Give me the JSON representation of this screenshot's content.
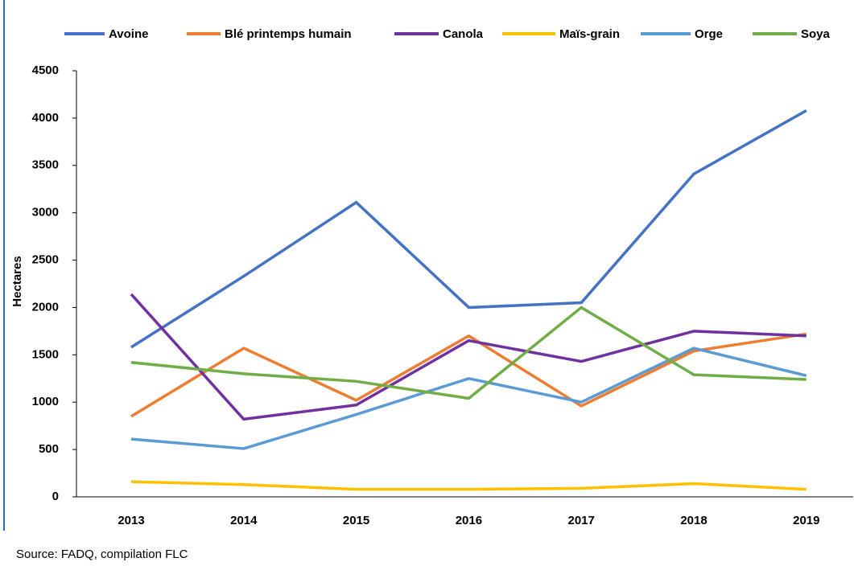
{
  "chart_data": {
    "type": "line",
    "y_label": "Hectares",
    "source": "Source:  FADQ, compilation  FLC",
    "categories": [
      "2013",
      "2014",
      "2015",
      "2016",
      "2017",
      "2018",
      "2019"
    ],
    "series": [
      {
        "name": "Avoine",
        "color": "#4472c4",
        "values": [
          1580,
          2330,
          3110,
          2000,
          2050,
          3410,
          4080
        ]
      },
      {
        "name": "Blé printemps humain",
        "color": "#ed7d31",
        "values": [
          850,
          1570,
          1020,
          1700,
          960,
          1540,
          1720
        ]
      },
      {
        "name": "Canola",
        "color": "#7030a0",
        "values": [
          2140,
          820,
          970,
          1650,
          1430,
          1750,
          1700
        ]
      },
      {
        "name": "Maïs-grain",
        "color": "#ffc000",
        "values": [
          160,
          130,
          80,
          80,
          90,
          140,
          80
        ]
      },
      {
        "name": "Orge",
        "color": "#5b9bd5",
        "values": [
          610,
          510,
          870,
          1250,
          1000,
          1570,
          1280
        ]
      },
      {
        "name": "Soya",
        "color": "#70ad47",
        "values": [
          1420,
          1300,
          1220,
          1040,
          2000,
          1290,
          1240
        ]
      }
    ],
    "ylim": [
      0,
      4500
    ],
    "yticks": [
      0,
      500,
      1000,
      1500,
      2000,
      2500,
      3000,
      3500,
      4000,
      4500
    ],
    "legend": "top"
  }
}
